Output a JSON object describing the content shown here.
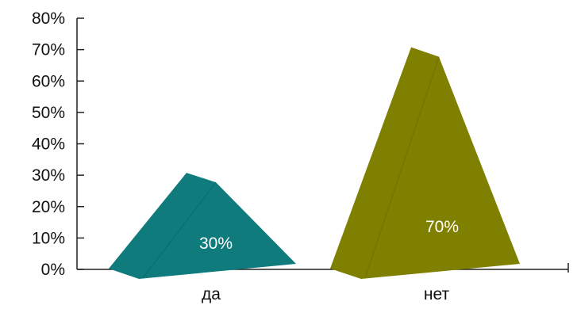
{
  "chart_data": {
    "type": "bar",
    "style": "3d-pyramid",
    "categories": [
      "да",
      "нет"
    ],
    "values": [
      30,
      70
    ],
    "value_labels": [
      "30%",
      "70%"
    ],
    "ylim": [
      0,
      80
    ],
    "yticks": [
      0,
      10,
      20,
      30,
      40,
      50,
      60,
      70,
      80
    ],
    "ytick_labels": [
      "0%",
      "10%",
      "20%",
      "30%",
      "40%",
      "50%",
      "60%",
      "70%",
      "80%"
    ],
    "colors": [
      "#0f7b7c",
      "#7f7f00"
    ],
    "shade_colors": [
      "#0a6465",
      "#6a6a00"
    ],
    "grid": false,
    "legend": "none"
  }
}
